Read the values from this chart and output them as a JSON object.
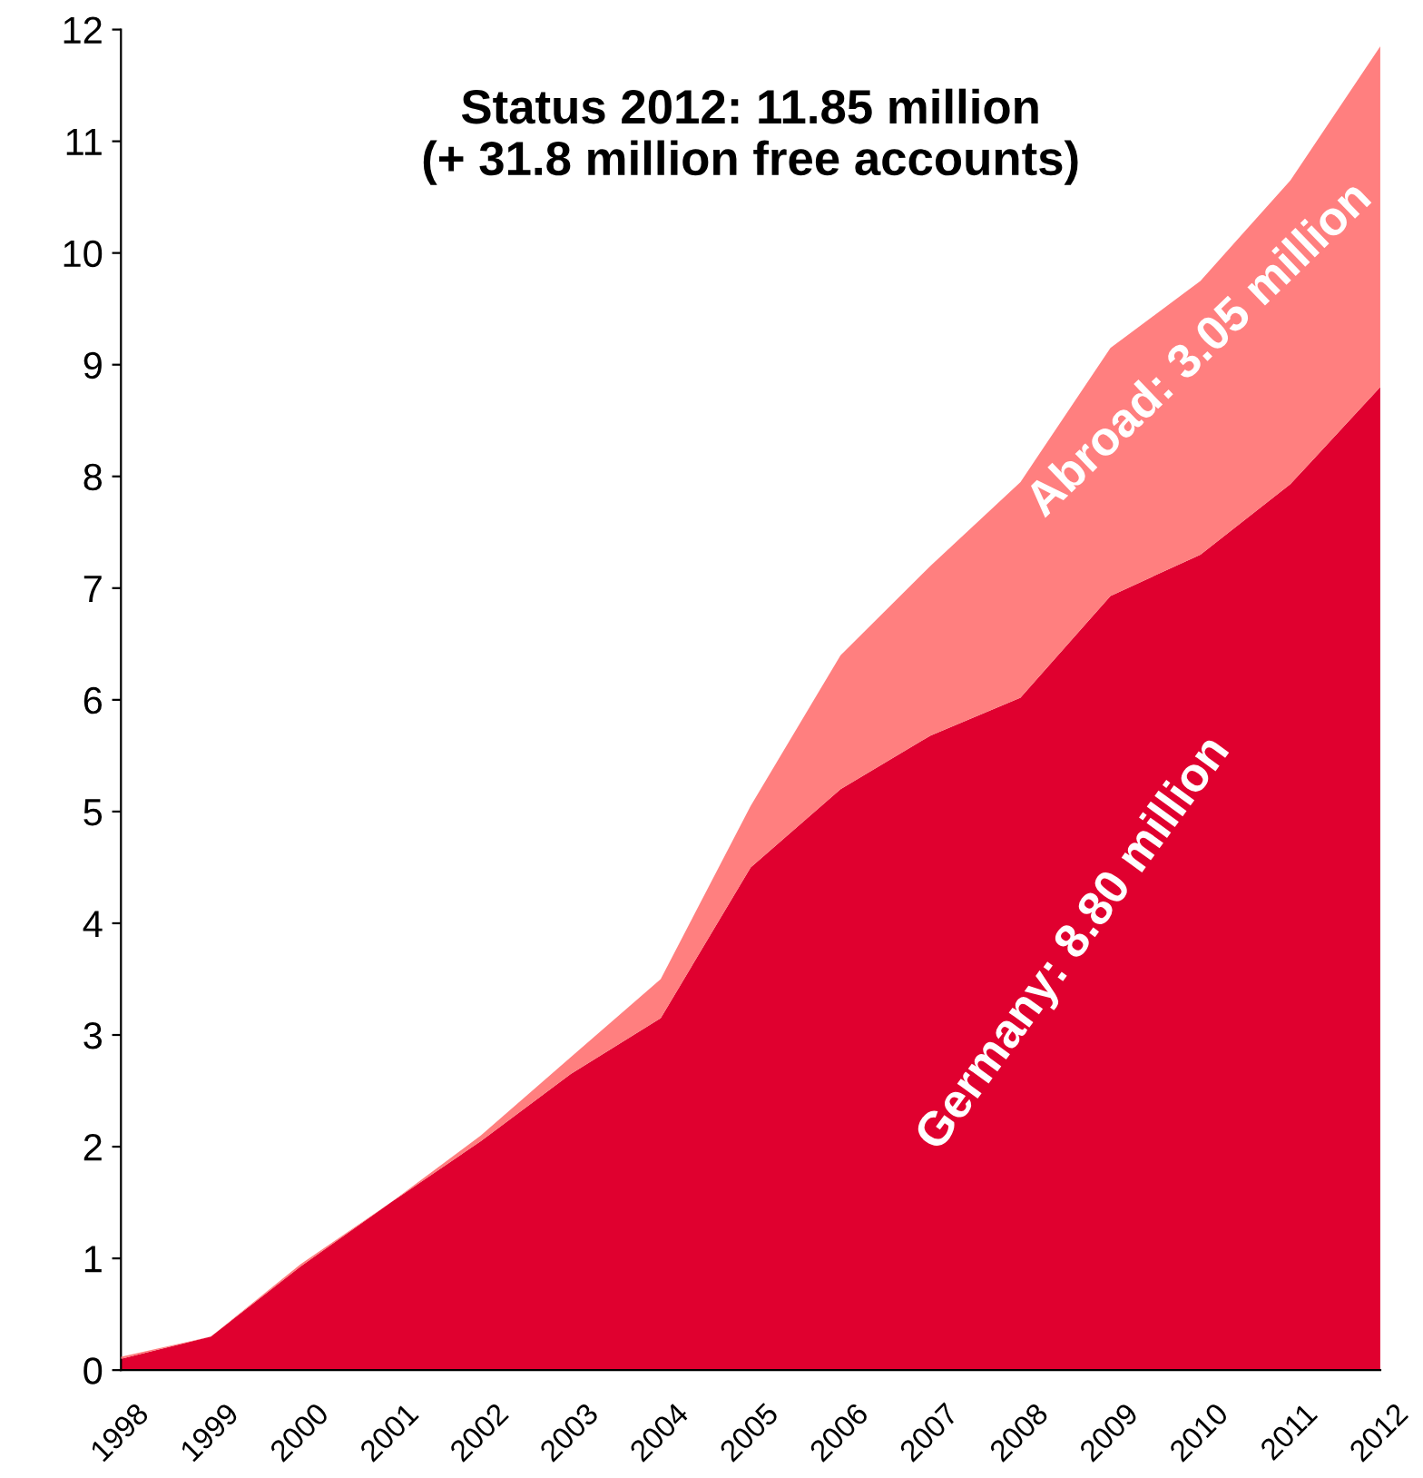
{
  "chart_data": {
    "type": "area",
    "stacked": true,
    "title": "Status 2012: 11.85 million\n(+ 31.8 million free accounts)",
    "categories": [
      "1998",
      "1999",
      "2000",
      "2001",
      "2002",
      "2003",
      "2004",
      "2005",
      "2006",
      "2007",
      "2008",
      "2009",
      "2010",
      "2011",
      "2012"
    ],
    "series": [
      {
        "name": "Germany: 8.80 million",
        "color": "#e0002f",
        "values": [
          0.1,
          0.3,
          0.93,
          1.5,
          2.05,
          2.65,
          3.15,
          4.5,
          5.2,
          5.68,
          6.02,
          6.93,
          7.3,
          7.93,
          8.8
        ]
      },
      {
        "name": "Abroad: 3.05 million",
        "color": "#ff7f7f",
        "values": [
          0.02,
          0.0,
          0.02,
          0.0,
          0.05,
          0.15,
          0.35,
          0.55,
          1.2,
          1.52,
          1.93,
          2.22,
          2.45,
          2.72,
          3.05
        ]
      }
    ],
    "ylim": [
      0,
      12
    ],
    "yticks": [
      0,
      1,
      2,
      3,
      4,
      5,
      6,
      7,
      8,
      9,
      10,
      11,
      12
    ],
    "grid": false,
    "legend": false
  }
}
